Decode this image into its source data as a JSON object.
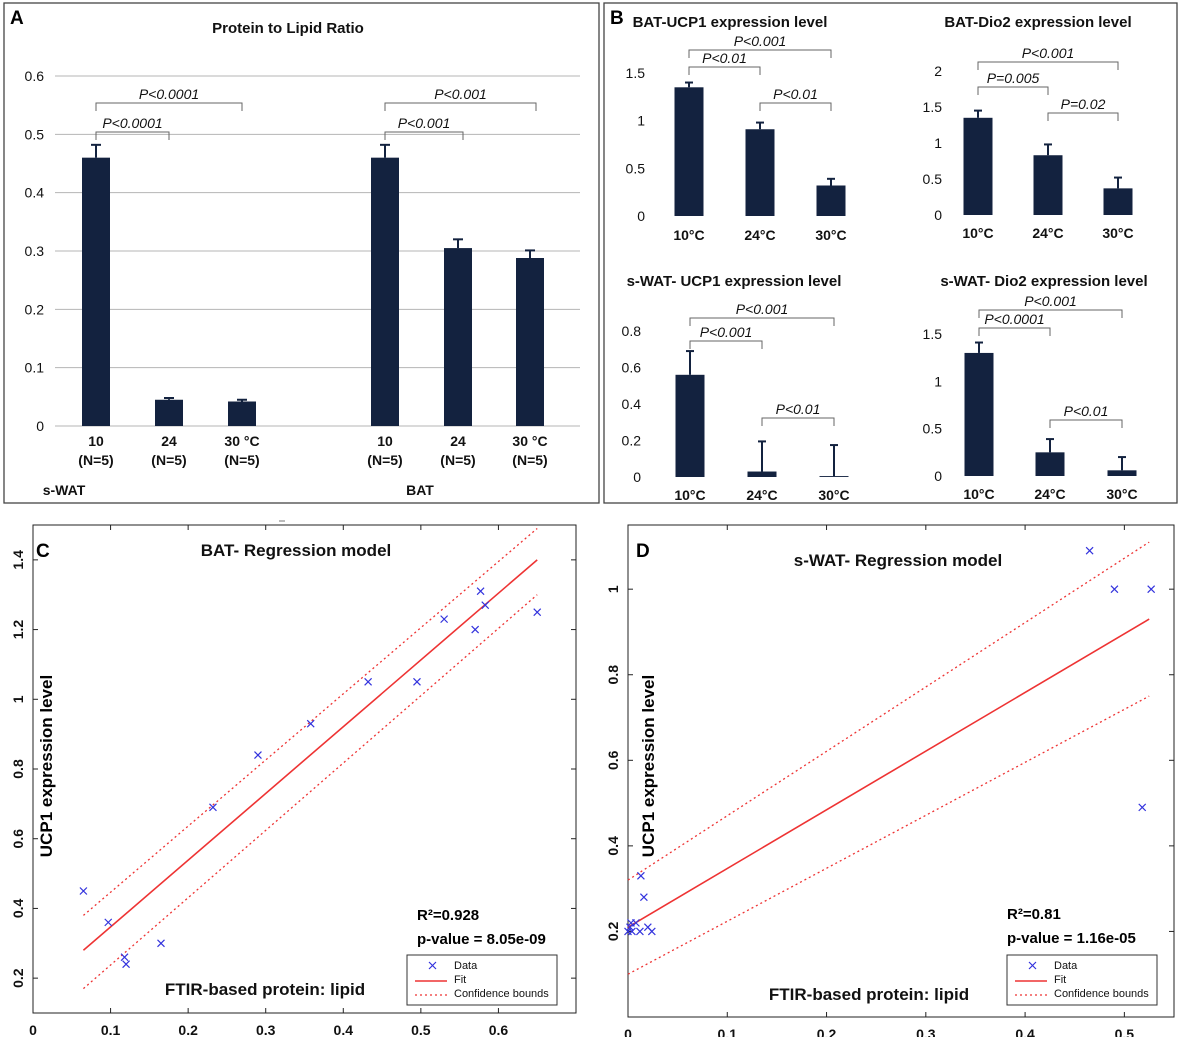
{
  "colors": {
    "bar": "#13223f",
    "fit": "#ee3333",
    "data": "#3333dd",
    "grid": "#b5b5b5"
  },
  "chart_data": [
    {
      "panel": "A",
      "type": "bar",
      "title": "Protein to Lipid Ratio",
      "ylim": [
        0,
        0.6
      ],
      "yticks": [
        "0.6",
        "0.5",
        "0.4",
        "0.3",
        "0.2",
        "0.1",
        "0"
      ],
      "groups": [
        {
          "name": "s-WAT",
          "categories": [
            "10",
            "24",
            "30 °C"
          ],
          "n": [
            "(N=5)",
            "(N=5)",
            "(N=5)"
          ],
          "values": [
            0.46,
            0.045,
            0.042
          ],
          "errors": [
            0.022,
            0.003,
            0.003
          ]
        },
        {
          "name": "BAT",
          "categories": [
            "10",
            "24",
            "30 °C"
          ],
          "n": [
            "(N=5)",
            "(N=5)",
            "(N=5)"
          ],
          "values": [
            0.46,
            0.305,
            0.288
          ],
          "errors": [
            0.022,
            0.015,
            0.013
          ]
        }
      ],
      "annotations": [
        "P<0.0001",
        "P<0.0001",
        "P<0.001",
        "P<0.001"
      ]
    },
    {
      "panel": "B1",
      "type": "bar",
      "title": "BAT-UCP1 expression level",
      "categories": [
        "10°C",
        "24°C",
        "30°C"
      ],
      "values": [
        1.35,
        0.91,
        0.32
      ],
      "errors": [
        0.05,
        0.07,
        0.07
      ],
      "ylim": [
        0,
        1.5
      ],
      "yticks": [
        "1.5",
        "1",
        "0.5",
        "0"
      ],
      "annotations": [
        "P<0.001",
        "P<0.01",
        "P<0.01"
      ]
    },
    {
      "panel": "B2",
      "type": "bar",
      "title": "BAT-Dio2 expression level",
      "categories": [
        "10°C",
        "24°C",
        "30°C"
      ],
      "values": [
        1.35,
        0.83,
        0.37
      ],
      "errors": [
        0.1,
        0.15,
        0.15
      ],
      "ylim": [
        0,
        2
      ],
      "yticks": [
        "2",
        "1.5",
        "1",
        "0.5",
        "0"
      ],
      "annotations": [
        "P<0.001",
        "P=0.005",
        "P=0.02"
      ]
    },
    {
      "panel": "B3",
      "type": "bar",
      "title": "s-WAT- UCP1 expression level",
      "categories": [
        "10°C",
        "24°C",
        "30°C"
      ],
      "values": [
        0.56,
        0.03,
        0.005
      ],
      "errors": [
        0.13,
        0.165,
        0.17
      ],
      "ylim": [
        0,
        0.8
      ],
      "yticks": [
        "0.8",
        "0.6",
        "0.4",
        "0.2",
        "0"
      ],
      "annotations": [
        "P<0.001",
        "P<0.001",
        "P<0.01"
      ]
    },
    {
      "panel": "B4",
      "type": "bar",
      "title": "s-WAT- Dio2 expression level",
      "categories": [
        "10°C",
        "24°C",
        "30°C"
      ],
      "values": [
        1.3,
        0.25,
        0.06
      ],
      "errors": [
        0.11,
        0.14,
        0.14
      ],
      "ylim": [
        0,
        1.5
      ],
      "yticks": [
        "1.5",
        "1",
        "0.5",
        "0"
      ],
      "annotations": [
        "P<0.001",
        "P<0.0001",
        "P<0.01"
      ]
    },
    {
      "panel": "C",
      "type": "scatter",
      "title": "BAT- Regression model",
      "xlabel": "FTIR-based protein: lipid",
      "ylabel": "UCP1 expression level",
      "xlim": [
        0,
        0.7
      ],
      "ylim": [
        0.1,
        1.5
      ],
      "xticks": [
        "0",
        "0.1",
        "0.2",
        "0.3",
        "0.4",
        "0.5",
        "0.6"
      ],
      "yticks": [
        "0.2",
        "0.4",
        "0.6",
        "0.8",
        "1",
        "1.2",
        "1.4"
      ],
      "x": [
        0.065,
        0.097,
        0.118,
        0.12,
        0.165,
        0.232,
        0.29,
        0.358,
        0.432,
        0.495,
        0.53,
        0.57,
        0.577,
        0.583,
        0.65
      ],
      "y": [
        0.45,
        0.36,
        0.26,
        0.24,
        0.3,
        0.69,
        0.84,
        0.93,
        1.05,
        1.05,
        1.23,
        1.2,
        1.31,
        1.27,
        1.25
      ],
      "fit": [
        [
          0.065,
          0.28
        ],
        [
          0.65,
          1.4
        ]
      ],
      "upper": [
        [
          0.065,
          0.38
        ],
        [
          0.65,
          1.49
        ]
      ],
      "lower": [
        [
          0.065,
          0.17
        ],
        [
          0.65,
          1.3
        ]
      ],
      "r2": "R²=0.928",
      "pvalue": "p-value = 8.05e-09",
      "legend": [
        "Data",
        "Fit",
        "Confidence bounds"
      ]
    },
    {
      "panel": "D",
      "type": "scatter",
      "title": "s-WAT- Regression model",
      "xlabel": "FTIR-based protein: lipid",
      "ylabel": "UCP1 expression level",
      "xlim": [
        0,
        0.55
      ],
      "ylim": [
        0,
        1.15
      ],
      "xticks": [
        "0",
        "0.1",
        "0.2",
        "0.3",
        "0.4",
        "0.5"
      ],
      "yticks": [
        "0.2",
        "0.4",
        "0.6",
        "0.8",
        "1"
      ],
      "x": [
        0.0,
        0.002,
        0.004,
        0.003,
        0.008,
        0.012,
        0.016,
        0.02,
        0.024,
        0.013,
        0.465,
        0.49,
        0.518,
        0.527
      ],
      "y": [
        0.2,
        0.21,
        0.2,
        0.22,
        0.22,
        0.2,
        0.28,
        0.21,
        0.2,
        0.33,
        1.09,
        1.0,
        0.49,
        1.0
      ],
      "fit": [
        [
          0.0,
          0.21
        ],
        [
          0.525,
          0.93
        ]
      ],
      "upper": [
        [
          0.0,
          0.32
        ],
        [
          0.525,
          1.11
        ]
      ],
      "lower": [
        [
          0.0,
          0.1
        ],
        [
          0.525,
          0.75
        ]
      ],
      "r2": "R²=0.81",
      "pvalue": "p-value = 1.16e-05",
      "legend": [
        "Data",
        "Fit",
        "Confidence bounds"
      ]
    }
  ]
}
